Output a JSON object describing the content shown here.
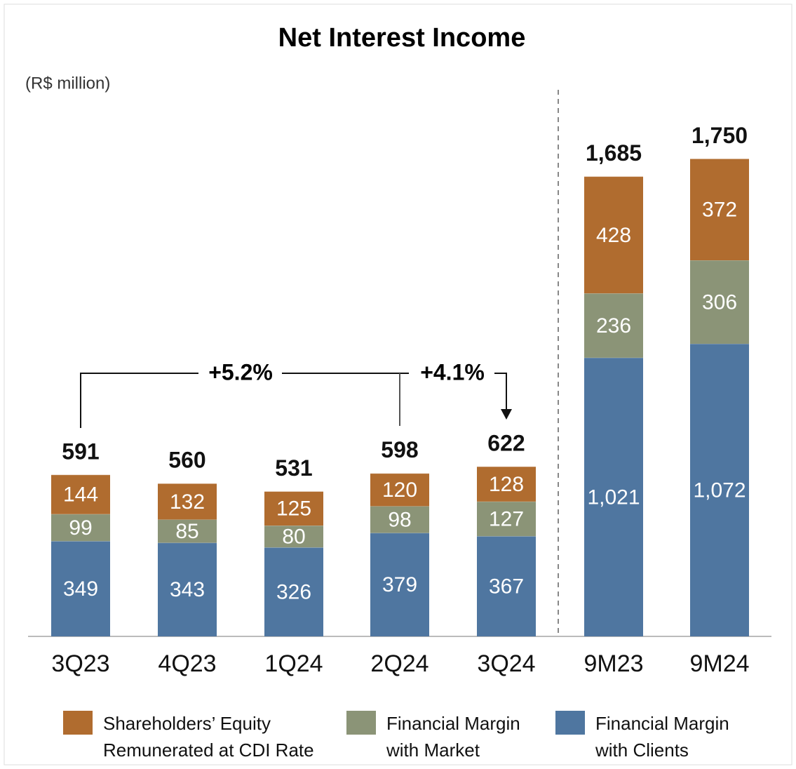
{
  "chart_data": {
    "type": "stacked_bar",
    "title": "Net Interest Income",
    "subtitle": "(R$ million)",
    "categories": [
      "3Q23",
      "4Q23",
      "1Q24",
      "2Q24",
      "3Q24",
      "9M23",
      "9M24"
    ],
    "series": [
      {
        "name": "Shareholders’ Equity Remunerated at CDI Rate",
        "color": "#b06c2f",
        "values": [
          144,
          132,
          125,
          120,
          128,
          428,
          372
        ]
      },
      {
        "name": "Financial Margin with Market",
        "color": "#8b9477",
        "values": [
          99,
          85,
          80,
          98,
          127,
          236,
          306
        ]
      },
      {
        "name": "Financial Margin with Clients",
        "color": "#4f76a0",
        "values": [
          349,
          343,
          326,
          379,
          367,
          1021,
          1072
        ],
        "value_labels": [
          "349",
          "343",
          "326",
          "379",
          "367",
          "1,021",
          "1,072"
        ]
      }
    ],
    "totals": {
      "values": [
        591,
        560,
        531,
        598,
        622,
        1685,
        1750
      ],
      "value_labels": [
        "591",
        "560",
        "531",
        "598",
        "622",
        "1,685",
        "1,750"
      ]
    },
    "annotations": [
      "+5.2%",
      "+4.1%"
    ],
    "ylim": [
      0,
      1900
    ]
  }
}
